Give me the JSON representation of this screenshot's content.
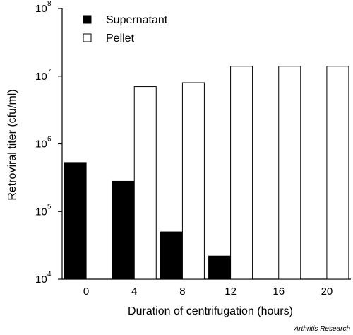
{
  "chart_data": {
    "type": "bar",
    "categories": [
      "0",
      "4",
      "8",
      "12",
      "16",
      "20"
    ],
    "series": [
      {
        "name": "Supernatant",
        "color": "#000000",
        "fill": "solid",
        "values": [
          530000,
          280000,
          50000,
          22000,
          null,
          null
        ]
      },
      {
        "name": "Pellet",
        "color": "#ffffff",
        "fill": "outline",
        "values": [
          null,
          7000000,
          8000000,
          14000000,
          14000000,
          14000000
        ]
      }
    ],
    "xlabel": "Duration of centrifugation (hours)",
    "ylabel": "Retroviral titer (cfu/ml)",
    "yscale": "log",
    "ylim": [
      10000,
      100000000
    ],
    "yticks": [
      {
        "base": "10",
        "exp": "4"
      },
      {
        "base": "10",
        "exp": "5"
      },
      {
        "base": "10",
        "exp": "6"
      },
      {
        "base": "10",
        "exp": "7"
      },
      {
        "base": "10",
        "exp": "8"
      }
    ],
    "legend_position": "top-left",
    "grid": false
  },
  "credit": "Arthritis Research"
}
